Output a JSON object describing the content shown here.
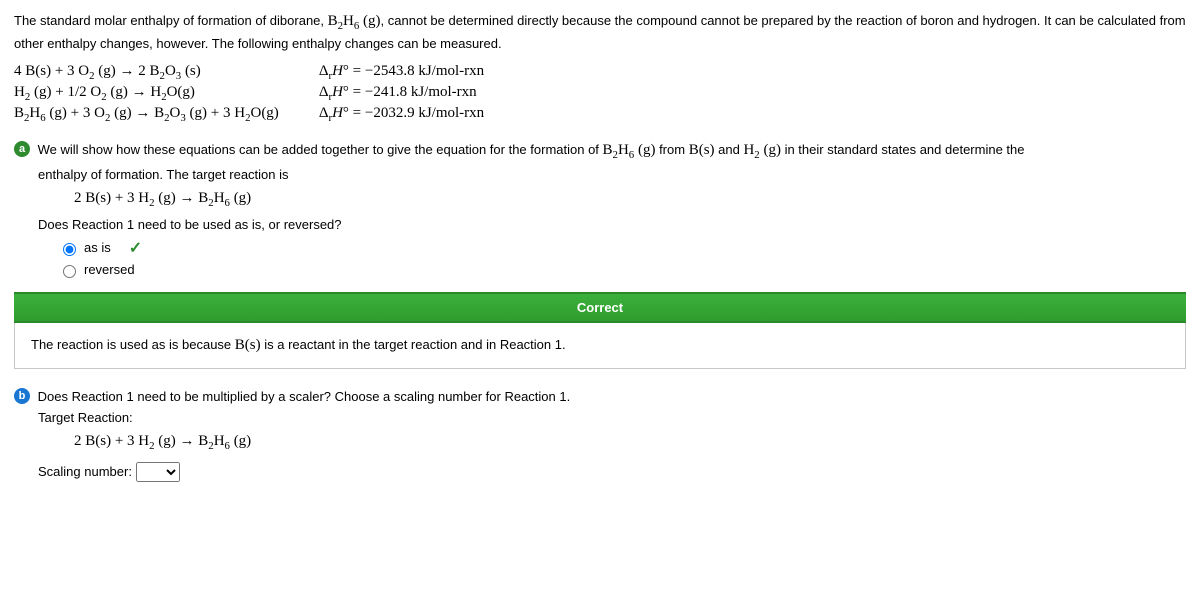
{
  "intro": "The standard molar enthalpy of formation of diborane, B₂H₆ (g), cannot be determined directly because the compound cannot be prepared by the reaction of boron and hydrogen. It can be calculated from other enthalpy changes, however. The following enthalpy changes can be measured.",
  "reactions": [
    {
      "eq": "4 B(s) + 3 O₂ (g) → 2 B₂O₃ (s)",
      "dH": "ΔᵣH° = −2543.8 kJ/mol-rxn"
    },
    {
      "eq": "H₂ (g) + 1/2 O₂ (g) → H₂O(g)",
      "dH": "ΔᵣH° = −241.8 kJ/mol-rxn"
    },
    {
      "eq": "B₂H₆ (g) + 3 O₂ (g) → B₂O₃ (g) + 3 H₂O(g)",
      "dH": "ΔᵣH° = −2032.9 kJ/mol-rxn"
    }
  ],
  "partA": {
    "badge": "a",
    "text": "We will show how these equations can be added together to give the equation for the formation of B₂H₆ (g) from B(s) and H₂ (g) in their standard states and determine the enthalpy of formation. The target reaction is",
    "target_eq": "2 B(s) + 3 H₂ (g) → B₂H₆ (g)",
    "question": "Does Reaction 1 need to be used as is, or reversed?",
    "options": {
      "asis": "as is",
      "reversed": "reversed"
    },
    "selected": "asis",
    "correct_label": "Correct",
    "feedback": "The reaction is used as is because B(s) is a reactant in the target reaction and in Reaction 1."
  },
  "partB": {
    "badge": "b",
    "text": "Does Reaction 1 need to be multiplied by a scaler? Choose a scaling number for Reaction 1.",
    "target_label": "Target Reaction:",
    "target_eq": "2 B(s) + 3 H₂ (g) → B₂H₆ (g)",
    "scaling_label": "Scaling number:"
  },
  "colors": {
    "correct_bar_bg_top": "#3bb03b",
    "correct_bar_bg_bottom": "#2e9c2e",
    "badge_a": "#2e8b2e",
    "badge_b": "#1976d2"
  }
}
